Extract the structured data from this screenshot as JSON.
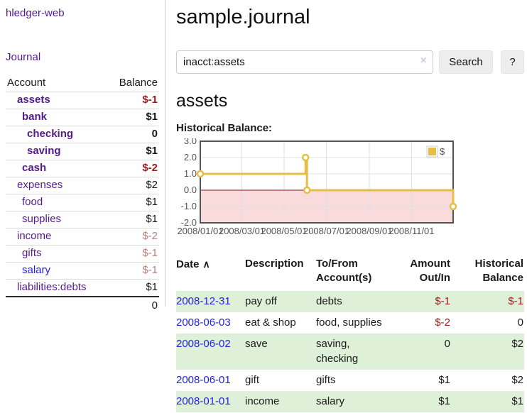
{
  "sidebar": {
    "brand": "hledger-web",
    "nav": {
      "journal": "Journal"
    },
    "accounts_table": {
      "headers": {
        "account": "Account",
        "balance": "Balance"
      },
      "rows": [
        {
          "name": "assets",
          "level": 1,
          "bold": true,
          "balance": "$-1",
          "balance_style": "neg-strong"
        },
        {
          "name": "bank",
          "level": 2,
          "bold": true,
          "balance": "$1",
          "balance_style": "pos-strong"
        },
        {
          "name": "checking",
          "level": 3,
          "bold": true,
          "balance": "0",
          "balance_style": "pos-strong"
        },
        {
          "name": "saving",
          "level": 3,
          "bold": true,
          "balance": "$1",
          "balance_style": "pos-strong"
        },
        {
          "name": "cash",
          "level": 2,
          "bold": true,
          "balance": "$-2",
          "balance_style": "neg-strong"
        },
        {
          "name": "expenses",
          "level": 1,
          "bold": false,
          "balance": "$2",
          "balance_style": "pos"
        },
        {
          "name": "food",
          "level": 2,
          "bold": false,
          "balance": "$1",
          "balance_style": "pos"
        },
        {
          "name": "supplies",
          "level": 2,
          "bold": false,
          "balance": "$1",
          "balance_style": "pos"
        },
        {
          "name": "income",
          "level": 1,
          "bold": false,
          "balance": "$-2",
          "balance_style": "neg"
        },
        {
          "name": "gifts",
          "level": 2,
          "bold": false,
          "balance": "$-1",
          "balance_style": "neg"
        },
        {
          "name": "salary",
          "level": 2,
          "bold": false,
          "balance": "$-1",
          "balance_style": "neg",
          "link_style": "unvisited"
        },
        {
          "name": "liabilities:debts",
          "level": 1,
          "bold": false,
          "balance": "$1",
          "balance_style": "pos"
        }
      ],
      "total": "0"
    }
  },
  "main": {
    "title": "sample.journal",
    "search": {
      "value": "inacct:assets",
      "clear_icon": "×",
      "search_button": "Search",
      "help_button": "?"
    },
    "account_heading": "assets",
    "chart_label": "Historical Balance:"
  },
  "chart_data": {
    "type": "line",
    "title": "Historical Balance",
    "legend": {
      "position": "top-right",
      "label": "$"
    },
    "xlim": [
      "2008-01-01",
      "2008-12-31"
    ],
    "ylim": [
      -2,
      3
    ],
    "y_ticks": [
      3.0,
      2.0,
      1.0,
      0.0,
      -1.0,
      -2.0
    ],
    "x_ticks": [
      {
        "date": "2008-01-01",
        "label": "2008/01/01"
      },
      {
        "date": "2008-03-01",
        "label": "2008/03/01"
      },
      {
        "date": "2008-05-01",
        "label": "2008/05/01"
      },
      {
        "date": "2008-07-01",
        "label": "2008/07/01"
      },
      {
        "date": "2008-09-01",
        "label": "2008/09/01"
      },
      {
        "date": "2008-11-01",
        "label": "2008/11/01"
      }
    ],
    "series": [
      {
        "name": "$",
        "color": "#e6be45",
        "marker": "open-circle",
        "step": true,
        "points": [
          {
            "x": "2008-01-01",
            "y": 1
          },
          {
            "x": "2008-06-01",
            "y": 2
          },
          {
            "x": "2008-06-03",
            "y": 0
          },
          {
            "x": "2008-12-31",
            "y": -1
          }
        ]
      }
    ],
    "grid": true,
    "negative_region_color": "#f9dbdb",
    "zero_line_color": "#8b1414",
    "border_color": "#545454"
  },
  "register": {
    "headers": {
      "date": "Date",
      "sort_indicator": "∧",
      "description": "Description",
      "accounts": "To/From Account(s)",
      "amount": "Amount Out/In",
      "balance": "Historical Balance"
    },
    "rows": [
      {
        "date": "2008-12-31",
        "description": "pay off",
        "accounts": "debts",
        "amount": "$-1",
        "amount_negative": true,
        "balance": "$-1",
        "balance_negative": true,
        "highlighted": true
      },
      {
        "date": "2008-06-03",
        "description": "eat & shop",
        "accounts": "food, supplies",
        "amount": "$-2",
        "amount_negative": true,
        "balance": "0",
        "balance_negative": false,
        "highlighted": false
      },
      {
        "date": "2008-06-02",
        "description": "save",
        "accounts": "saving, checking",
        "amount": "0",
        "amount_negative": false,
        "balance": "$2",
        "balance_negative": false,
        "highlighted": true
      },
      {
        "date": "2008-06-01",
        "description": "gift",
        "accounts": "gifts",
        "amount": "$1",
        "amount_negative": false,
        "balance": "$2",
        "balance_negative": false,
        "highlighted": false
      },
      {
        "date": "2008-01-01",
        "description": "income",
        "accounts": "salary",
        "amount": "$1",
        "amount_negative": false,
        "balance": "$1",
        "balance_negative": false,
        "highlighted": true
      }
    ]
  },
  "colors": {
    "link_purple": "#551a8b",
    "link_blue": "#2323dd",
    "negative_strong": "#9e1b1b",
    "negative_soft": "#bd7e7e",
    "row_highlight_green": "#dff0d8",
    "series_gold": "#e6be45"
  }
}
